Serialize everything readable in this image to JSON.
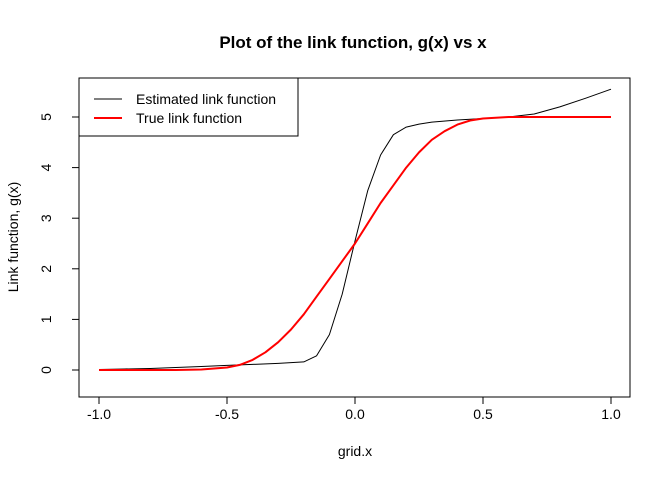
{
  "chart_data": {
    "type": "line",
    "title": "Plot of the link function, g(x) vs x",
    "xlabel": "grid.x",
    "ylabel": "Link function, g(x)",
    "xlim": [
      -1.0,
      1.0
    ],
    "ylim": [
      0,
      5
    ],
    "x_ticks": [
      "-1.0",
      "-0.5",
      "0.0",
      "0.5",
      "1.0"
    ],
    "y_ticks": [
      "0",
      "1",
      "2",
      "3",
      "4",
      "5"
    ],
    "grid": false,
    "legend_position": "top-left",
    "series": [
      {
        "name": "Estimated link function",
        "color": "#000000",
        "x": [
          -1.0,
          -0.9,
          -0.8,
          -0.7,
          -0.6,
          -0.5,
          -0.4,
          -0.3,
          -0.2,
          -0.15,
          -0.1,
          -0.05,
          0.0,
          0.05,
          0.1,
          0.15,
          0.2,
          0.25,
          0.3,
          0.4,
          0.5,
          0.6,
          0.7,
          0.8,
          0.9,
          1.0
        ],
        "y": [
          0.01,
          0.02,
          0.03,
          0.05,
          0.07,
          0.09,
          0.11,
          0.13,
          0.16,
          0.28,
          0.7,
          1.5,
          2.55,
          3.55,
          4.25,
          4.65,
          4.8,
          4.86,
          4.9,
          4.94,
          4.97,
          5.0,
          5.06,
          5.2,
          5.37,
          5.55
        ]
      },
      {
        "name": "True link function",
        "color": "#ff0000",
        "x": [
          -1.0,
          -0.9,
          -0.8,
          -0.7,
          -0.6,
          -0.5,
          -0.45,
          -0.4,
          -0.35,
          -0.3,
          -0.25,
          -0.2,
          -0.15,
          -0.1,
          -0.05,
          0.0,
          0.05,
          0.1,
          0.15,
          0.2,
          0.25,
          0.3,
          0.35,
          0.4,
          0.45,
          0.5,
          0.6,
          0.7,
          0.8,
          0.9,
          1.0
        ],
        "y": [
          0.0,
          0.0,
          0.0,
          0.0,
          0.01,
          0.05,
          0.1,
          0.2,
          0.35,
          0.55,
          0.8,
          1.1,
          1.45,
          1.8,
          2.15,
          2.5,
          2.9,
          3.3,
          3.65,
          4.0,
          4.3,
          4.55,
          4.72,
          4.85,
          4.93,
          4.97,
          5.0,
          5.0,
          5.0,
          5.0,
          5.0
        ]
      }
    ]
  }
}
